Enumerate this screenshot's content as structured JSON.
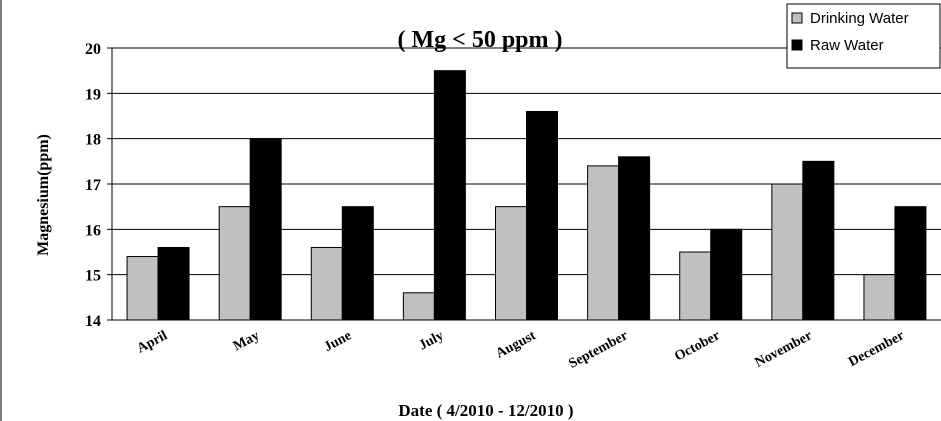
{
  "chart_data": {
    "type": "bar",
    "title": "( Mg < 50  ppm )",
    "xlabel": "Date ( 4/2010 - 12/2010 )",
    "ylabel": "Magnesium(ppm)",
    "categories": [
      "April",
      "May",
      "June",
      "July",
      "August",
      "September",
      "October",
      "November",
      "December"
    ],
    "series": [
      {
        "name": "Drinking Water",
        "color": "#c0c0c0",
        "values": [
          15.4,
          16.5,
          15.6,
          14.6,
          16.5,
          17.4,
          15.5,
          17.0,
          15.0
        ]
      },
      {
        "name": "Raw Water",
        "color": "#000000",
        "values": [
          15.6,
          18.0,
          16.5,
          19.5,
          18.6,
          17.6,
          16.0,
          17.5,
          16.5
        ]
      }
    ],
    "ylim": [
      14,
      20
    ],
    "yticks": [
      14,
      15,
      16,
      17,
      18,
      19,
      20
    ],
    "grid": true,
    "legend_position": "top-right"
  }
}
